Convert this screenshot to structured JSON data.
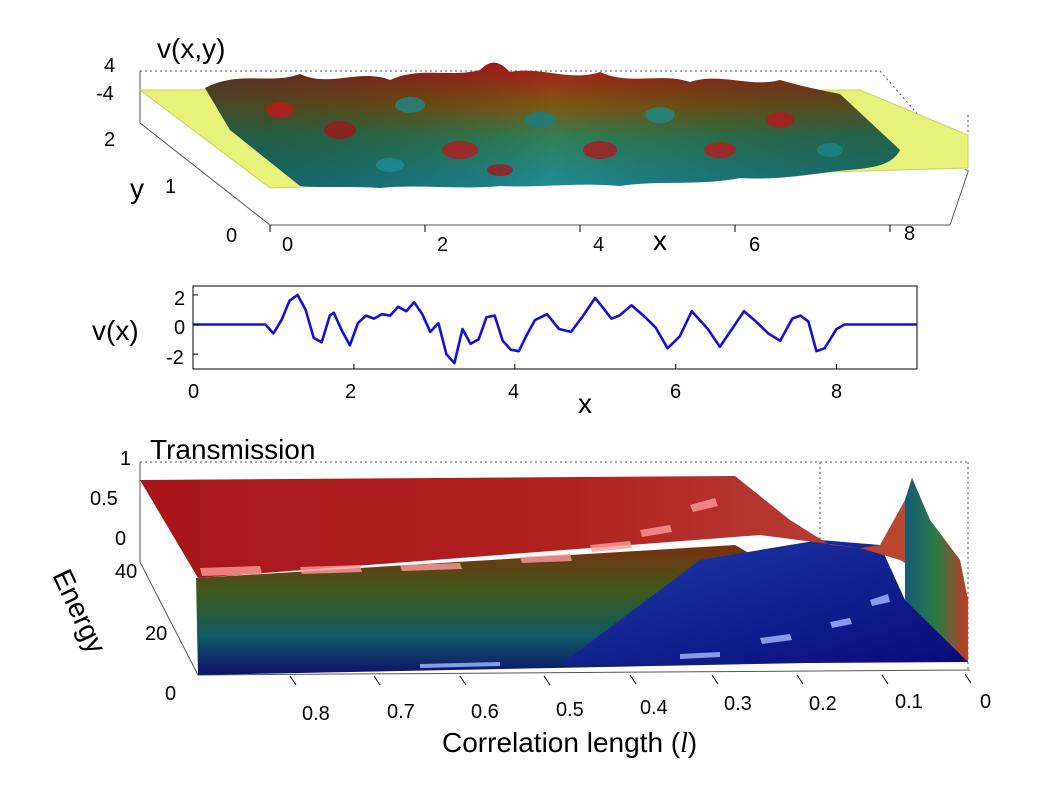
{
  "chart_data": [
    {
      "panel": "top",
      "type": "surface",
      "title": "",
      "zlabel": "v(x,y)",
      "xlabel": "x",
      "ylabel": "y",
      "x_ticks": [
        "0",
        "2",
        "4",
        "6",
        "8"
      ],
      "y_ticks": [
        "0",
        "1",
        "2"
      ],
      "z_ticks": [
        "4",
        "-4"
      ],
      "xlim": [
        0,
        9
      ],
      "ylim": [
        0,
        2.2
      ],
      "zlim": [
        -4,
        4
      ],
      "colormap": "jet",
      "plateau_color": "#e6f27a",
      "random_region_x": [
        1,
        8.1
      ],
      "grid": true
    },
    {
      "panel": "middle",
      "type": "line",
      "xlabel": "x",
      "ylabel": "v(x)",
      "x_ticks": [
        "0",
        "2",
        "4",
        "6",
        "8"
      ],
      "y_ticks": [
        "2",
        "0",
        "-2"
      ],
      "xlim": [
        0,
        9
      ],
      "ylim": [
        -3,
        2.6
      ],
      "series": [
        {
          "name": "v(x)",
          "color": "#1010d8",
          "x": [
            0,
            0.5,
            0.9,
            1.0,
            1.1,
            1.2,
            1.3,
            1.4,
            1.5,
            1.6,
            1.7,
            1.75,
            1.85,
            1.95,
            2.05,
            2.15,
            2.25,
            2.35,
            2.45,
            2.55,
            2.65,
            2.75,
            2.85,
            2.95,
            3.05,
            3.15,
            3.25,
            3.35,
            3.45,
            3.55,
            3.65,
            3.75,
            3.85,
            3.95,
            4.05,
            4.15,
            4.25,
            4.4,
            4.55,
            4.7,
            4.85,
            5.0,
            5.1,
            5.2,
            5.3,
            5.45,
            5.6,
            5.75,
            5.9,
            6.05,
            6.2,
            6.3,
            6.4,
            6.55,
            6.7,
            6.85,
            7.0,
            7.15,
            7.3,
            7.45,
            7.55,
            7.65,
            7.75,
            7.85,
            8.0,
            8.1,
            8.5,
            9.0
          ],
          "values": [
            0,
            0,
            0,
            -0.6,
            0.3,
            1.6,
            2.0,
            1.0,
            -0.9,
            -1.2,
            0.6,
            0.8,
            -0.4,
            -1.4,
            0.1,
            0.6,
            0.4,
            0.7,
            0.6,
            1.2,
            0.9,
            1.5,
            0.7,
            -0.5,
            0.1,
            -2.0,
            -2.6,
            -0.3,
            -1.3,
            -1.0,
            0.5,
            0.6,
            -1.1,
            -1.7,
            -1.8,
            -0.7,
            0.3,
            0.7,
            -0.3,
            -0.5,
            0.6,
            1.8,
            1.1,
            0.4,
            0.6,
            1.3,
            0.6,
            -0.2,
            -1.6,
            -0.8,
            0.9,
            0.3,
            -0.3,
            -1.5,
            -0.3,
            0.9,
            0.2,
            -0.6,
            -1.1,
            0.4,
            0.6,
            0.2,
            -1.8,
            -1.6,
            -0.3,
            0,
            0,
            0
          ]
        }
      ],
      "grid": false
    },
    {
      "panel": "bottom",
      "type": "surface",
      "zlabel": "Transmission",
      "xlabel": "Correlation length (",
      "xlabel_symbol": "l",
      "xlabel_close": ")",
      "ylabel": "Energy",
      "x_ticks": [
        "0.8",
        "0.7",
        "0.6",
        "0.5",
        "0.4",
        "0.3",
        "0.2",
        "0.1",
        "0"
      ],
      "y_ticks": [
        "0",
        "20",
        "40"
      ],
      "z_ticks": [
        "1",
        "0.5",
        "0"
      ],
      "xlim": [
        0.9,
        0
      ],
      "ylim": [
        0,
        40
      ],
      "zlim": [
        0,
        1
      ],
      "colormap": "jet-shaded",
      "grid": true
    }
  ]
}
